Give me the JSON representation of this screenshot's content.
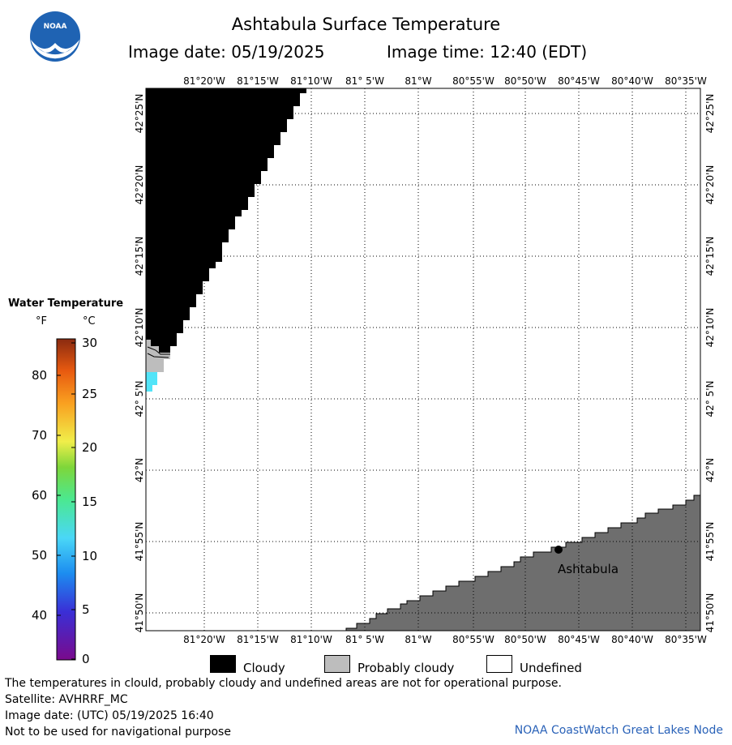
{
  "header": {
    "title": "Ashtabula Surface Temperature",
    "image_date": "Image date: 05/19/2025",
    "image_time": "Image time: 12:40 (EDT)"
  },
  "logo": {
    "text": "NOAA"
  },
  "map": {
    "lon_labels": [
      "81°20'W",
      "81°15'W",
      "81°10'W",
      "81° 5'W",
      "81°W",
      "80°55'W",
      "80°50'W",
      "80°45'W",
      "80°40'W",
      "80°35'W"
    ],
    "lat_labels": [
      "42°25'N",
      "42°20'N",
      "42°15'N",
      "42°10'N",
      "42° 5'N",
      "42°N",
      "41°55'N",
      "41°50'N"
    ],
    "place": {
      "name": "Ashtabula"
    }
  },
  "legend": {
    "title": "Water Temperature",
    "unit_f": "°F",
    "unit_c": "°C",
    "f_ticks": [
      "80",
      "70",
      "60",
      "50",
      "40"
    ],
    "c_ticks": [
      "30",
      "25",
      "20",
      "15",
      "10",
      "5",
      "0"
    ]
  },
  "key": {
    "cloudy": "Cloudy",
    "probably_cloudy": "Probably cloudy",
    "undefined": "Undefined"
  },
  "footer": {
    "disclaimer": "The temperatures in clould, probably cloudy and undefined areas are not for operational purpose.",
    "satellite": "Satellite: AVHRRF_MC",
    "utc_date": "Image date: (UTC) 05/19/2025  16:40",
    "nav_warning": "Not to be used for navigational purpose",
    "credit": "NOAA CoastWatch Great Lakes Node"
  },
  "colors": {
    "cloudy": "#000000",
    "probably_cloudy": "#bdbdbd",
    "land": "#6e6e6e",
    "undefined": "#ffffff",
    "water_sample": "#52e4f8",
    "credit": "#2a62b8"
  }
}
